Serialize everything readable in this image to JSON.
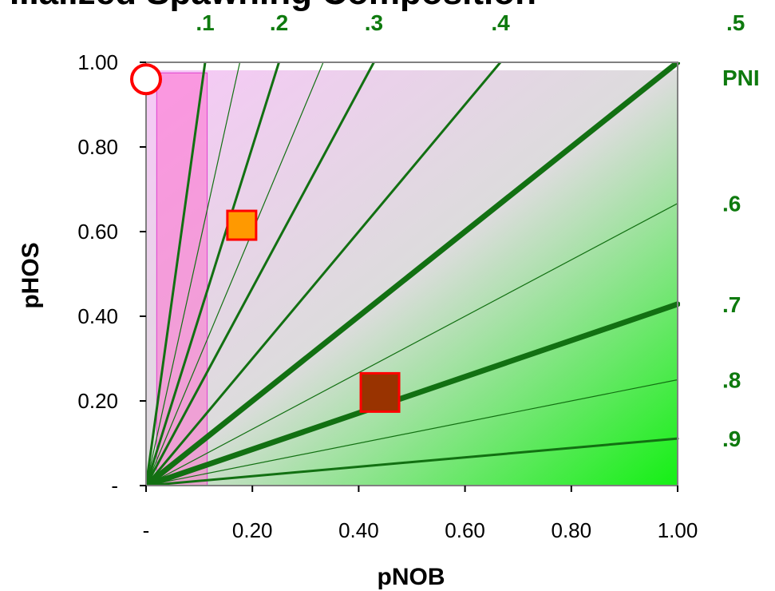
{
  "chart_data": {
    "type": "scatter",
    "title": "...alized Spawning Composition",
    "xlabel": "pNOB",
    "ylabel": "pHOS",
    "xlim": [
      0,
      1
    ],
    "ylim": [
      0,
      1
    ],
    "x_ticks": [
      {
        "value": 0,
        "label": "-"
      },
      {
        "value": 0.2,
        "label": "0.20"
      },
      {
        "value": 0.4,
        "label": "0.40"
      },
      {
        "value": 0.6,
        "label": "0.60"
      },
      {
        "value": 0.8,
        "label": "0.80"
      },
      {
        "value": 1.0,
        "label": "1.00"
      }
    ],
    "y_ticks": [
      {
        "value": 0,
        "label": "-"
      },
      {
        "value": 0.2,
        "label": "0.20"
      },
      {
        "value": 0.4,
        "label": "0.40"
      },
      {
        "value": 0.6,
        "label": "0.60"
      },
      {
        "value": 0.8,
        "label": "0.80"
      },
      {
        "value": 1.0,
        "label": "1.00"
      }
    ],
    "pni_axis_title": "PNI",
    "pni_lines": [
      {
        "pni": 0.1,
        "label": ".1",
        "weight": "medium"
      },
      {
        "pni": 0.15,
        "label": "",
        "weight": "thin"
      },
      {
        "pni": 0.2,
        "label": ".2",
        "weight": "medium"
      },
      {
        "pni": 0.25,
        "label": "",
        "weight": "thin"
      },
      {
        "pni": 0.3,
        "label": ".3",
        "weight": "medium"
      },
      {
        "pni": 0.4,
        "label": ".4",
        "weight": "medium"
      },
      {
        "pni": 0.5,
        "label": ".5",
        "weight": "thick"
      },
      {
        "pni": 0.6,
        "label": ".6",
        "weight": "thin"
      },
      {
        "pni": 0.7,
        "label": ".7",
        "weight": "thick"
      },
      {
        "pni": 0.8,
        "label": ".8",
        "weight": "thin"
      },
      {
        "pni": 0.9,
        "label": ".9",
        "weight": "medium"
      }
    ],
    "points": [
      {
        "name": "",
        "x": 0.0,
        "y": 0.96,
        "shape": "circle",
        "fill": "#ffffff",
        "stroke": "#ff0000",
        "size": "medium"
      },
      {
        "name": "",
        "x": 0.18,
        "y": 0.615,
        "shape": "square",
        "fill": "#ff9900",
        "stroke": "#ff0000",
        "size": "medium"
      },
      {
        "name": "",
        "x": 0.44,
        "y": 0.22,
        "shape": "square",
        "fill": "#993300",
        "stroke": "#ff0000",
        "size": "large"
      }
    ],
    "shaded_region": {
      "x": [
        0.02,
        0.115
      ],
      "y": [
        0,
        0.975
      ],
      "color": "#ff66cc"
    },
    "grid": false
  },
  "colors": {
    "pni_line": "#127012",
    "pni_label": "#0e7a0e",
    "gradient_pink": "#f7c8f7",
    "gradient_gray": "#dcdcdc",
    "gradient_green": "#14f014",
    "axis": "#000000"
  }
}
